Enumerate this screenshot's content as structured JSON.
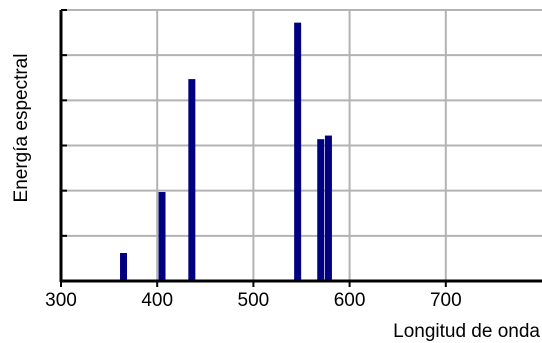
{
  "chart_data": {
    "type": "bar",
    "xlabel": "Longitud de onda",
    "ylabel": "Energía espectral",
    "xlim": [
      300,
      800
    ],
    "ylim": [
      0,
      6
    ],
    "x_ticks": [
      300,
      400,
      500,
      600,
      700
    ],
    "y_tick_labels_shown": false,
    "grid": true,
    "bar_color": "#000080",
    "values": [
      {
        "x": 365,
        "y": 0.62
      },
      {
        "x": 405,
        "y": 1.97
      },
      {
        "x": 436,
        "y": 4.47
      },
      {
        "x": 546,
        "y": 5.72
      },
      {
        "x": 570,
        "y": 3.14
      },
      {
        "x": 578,
        "y": 3.22
      }
    ]
  }
}
